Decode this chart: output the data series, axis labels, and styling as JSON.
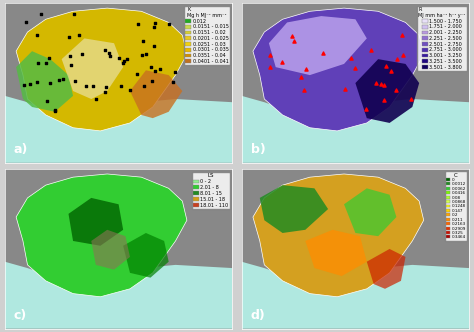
{
  "panels": [
    "a",
    "b",
    "c",
    "d"
  ],
  "panel_labels": [
    "a)",
    "b)",
    "c)",
    "d)"
  ],
  "titles": [
    "K",
    "R",
    "LS",
    "C"
  ],
  "subtitles": [
    "Mg h MJ⁻¹ mm⁻¹",
    "MJ mm ha⁻¹ h⁻¹ y⁻¹",
    "LS",
    "C"
  ],
  "panel_a_legend_labels": [
    "0.012",
    "0.0151 - 0.015",
    "0.0151 - 0.02",
    "0.0201 - 0.025",
    "0.0251 - 0.03",
    "0.0301 - 0.035",
    "0.0351 - 0.04",
    "0.0401 - 0.041"
  ],
  "panel_a_legend_colors": [
    "#22aa22",
    "#c8d850",
    "#d8d030",
    "#e8c820",
    "#f0d010",
    "#e8b800",
    "#d09000",
    "#c07020"
  ],
  "panel_b_legend_labels": [
    "1.500 - 1.750",
    "1.751 - 2.000",
    "2.001 - 2.250",
    "2.251 - 2.500",
    "2.501 - 2.750",
    "2.751 - 3.000",
    "3.001 - 3.250",
    "3.251 - 3.500",
    "3.501 - 3.800"
  ],
  "panel_b_legend_colors": [
    "#e8e0f8",
    "#d0c0f0",
    "#b898e0",
    "#9070d0",
    "#7050c0",
    "#5030b0",
    "#3818a0",
    "#200880",
    "#100060"
  ],
  "panel_c_legend_labels": [
    "0 - 2",
    "2.01 - 8",
    "8.01 - 15",
    "15.01 - 18",
    "18.01 - 110"
  ],
  "panel_c_legend_colors": [
    "#90ee90",
    "#32cd32",
    "#228b22",
    "#d4a017",
    "#c84020"
  ],
  "panel_d_legend_labels": [
    "0",
    "0.0012",
    "0.0062",
    "0.0416",
    "0.08",
    "0.0868",
    "0.1248",
    "0.147",
    "0.2",
    "0.211",
    "0.2163",
    "0.2909",
    "0.325",
    "0.3464"
  ],
  "panel_d_legend_colors": [
    "#006400",
    "#228b22",
    "#32cd32",
    "#7cfc00",
    "#adff2f",
    "#d4ff50",
    "#ffff00",
    "#ffd700",
    "#ffa500",
    "#ff8c00",
    "#ff6600",
    "#e63200",
    "#cc1100",
    "#aa0000"
  ],
  "bg_gray": "#a0a0a0",
  "bg_sea": "#b0e8e0",
  "figure_bg": "#d0d0d0",
  "label_fontsize": 9,
  "legend_fontsize": 5,
  "title_fontsize": 6.5
}
